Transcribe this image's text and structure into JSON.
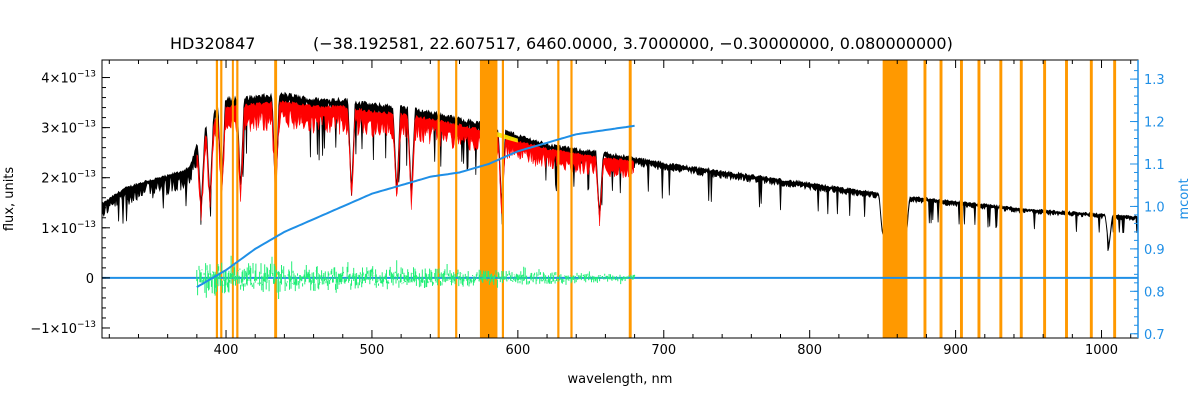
{
  "chart_data": {
    "type": "line",
    "title_object": "HD320847",
    "title_params": "(−38.192581, 22.607517, 6460.0000, 3.7000000, −0.30000000, 0.080000000)",
    "xlabel": "wavelength, nm",
    "ylabel": "flux, units",
    "y2label": "mcont",
    "xlim": [
      315,
      1025
    ],
    "ylim": [
      -1.2e-13,
      4.35e-13
    ],
    "y2lim": [
      0.69,
      1.345
    ],
    "grid": false,
    "x_ticks": [
      {
        "value": 400,
        "label": "400"
      },
      {
        "value": 500,
        "label": "500"
      },
      {
        "value": 600,
        "label": "600"
      },
      {
        "value": 700,
        "label": "700"
      },
      {
        "value": 800,
        "label": "800"
      },
      {
        "value": 900,
        "label": "900"
      },
      {
        "value": 1000,
        "label": "1000"
      }
    ],
    "y_ticks": [
      {
        "value": 4e-13,
        "mantissa": "4×10",
        "exp": "−13"
      },
      {
        "value": 3e-13,
        "mantissa": "3×10",
        "exp": "−13"
      },
      {
        "value": 2e-13,
        "mantissa": "2×10",
        "exp": "−13"
      },
      {
        "value": 1e-13,
        "mantissa": "1×10",
        "exp": "−13"
      },
      {
        "value": 0,
        "mantissa": "0",
        "exp": ""
      },
      {
        "value": -1e-13,
        "mantissa": "−1×10",
        "exp": "−13"
      }
    ],
    "y2_ticks": [
      "0.7",
      "0.8",
      "0.9",
      "1.0",
      "1.1",
      "1.2",
      "1.3"
    ],
    "colors": {
      "observed": "#000000",
      "model": "#ff0000",
      "model_highlight": "#ffee00",
      "residual": "#22ee77",
      "mcont": "#1f8fe6",
      "masked": "#ff9900",
      "right_axis": "#1f8fe6"
    },
    "series": [
      {
        "role": "observed",
        "color": "#000000",
        "points": [
          [
            315,
            1.45e-13
          ],
          [
            330,
            1.75e-13
          ],
          [
            345,
            1.9e-13
          ],
          [
            360,
            2e-13
          ],
          [
            375,
            2.15e-13
          ],
          [
            380,
            2.6e-13
          ],
          [
            390,
            3.2e-13
          ],
          [
            400,
            3.5e-13
          ],
          [
            420,
            3.55e-13
          ],
          [
            440,
            3.6e-13
          ],
          [
            460,
            3.5e-13
          ],
          [
            480,
            3.5e-13
          ],
          [
            500,
            3.4e-13
          ],
          [
            520,
            3.35e-13
          ],
          [
            540,
            3.25e-13
          ],
          [
            560,
            3.12e-13
          ],
          [
            580,
            3e-13
          ],
          [
            600,
            2.8e-13
          ],
          [
            620,
            2.62e-13
          ],
          [
            640,
            2.52e-13
          ],
          [
            660,
            2.45e-13
          ],
          [
            680,
            2.35e-13
          ],
          [
            700,
            2.25e-13
          ],
          [
            750,
            2.05e-13
          ],
          [
            800,
            1.85e-13
          ],
          [
            850,
            1.65e-13
          ],
          [
            900,
            1.5e-13
          ],
          [
            950,
            1.35e-13
          ],
          [
            1000,
            1.25e-13
          ],
          [
            1025,
            1.2e-13
          ]
        ]
      },
      {
        "role": "model",
        "color": "#ff0000",
        "x_range": [
          380,
          680
        ],
        "points": [
          [
            380,
            2.5e-13
          ],
          [
            390,
            3.1e-13
          ],
          [
            400,
            3.45e-13
          ],
          [
            420,
            3.5e-13
          ],
          [
            440,
            3.55e-13
          ],
          [
            460,
            3.45e-13
          ],
          [
            480,
            3.45e-13
          ],
          [
            500,
            3.35e-13
          ],
          [
            520,
            3.3e-13
          ],
          [
            540,
            3.2e-13
          ],
          [
            560,
            3.08e-13
          ],
          [
            580,
            2.95e-13
          ],
          [
            600,
            2.75e-13
          ],
          [
            620,
            2.6e-13
          ],
          [
            640,
            2.5e-13
          ],
          [
            660,
            2.42e-13
          ],
          [
            680,
            2.35e-13
          ]
        ]
      },
      {
        "role": "mcont",
        "axis": "right",
        "color": "#1f8fe6",
        "points": [
          [
            380,
            0.81
          ],
          [
            400,
            0.85
          ],
          [
            420,
            0.9
          ],
          [
            440,
            0.94
          ],
          [
            460,
            0.97
          ],
          [
            480,
            1.0
          ],
          [
            500,
            1.03
          ],
          [
            520,
            1.05
          ],
          [
            540,
            1.07
          ],
          [
            560,
            1.08
          ],
          [
            580,
            1.1
          ],
          [
            600,
            1.13
          ],
          [
            620,
            1.15
          ],
          [
            640,
            1.17
          ],
          [
            660,
            1.18
          ],
          [
            680,
            1.19
          ]
        ]
      },
      {
        "role": "residual",
        "color": "#22ee77",
        "x_range": [
          380,
          680
        ],
        "amplitude_start": 3.5e-14,
        "amplitude_end": 7e-15
      },
      {
        "role": "zero_line",
        "color": "#1f8fe6",
        "value": 0
      }
    ],
    "masked_regions": [
      [
        393,
        394.5
      ],
      [
        396,
        397.5
      ],
      [
        404,
        405
      ],
      [
        407,
        408.5
      ],
      [
        433,
        435
      ],
      [
        545,
        546.5
      ],
      [
        557,
        558.5
      ],
      [
        574,
        586
      ],
      [
        589,
        590.5
      ],
      [
        627,
        628.5
      ],
      [
        636,
        637.5
      ],
      [
        676,
        678
      ],
      [
        850,
        867
      ],
      [
        878,
        880
      ],
      [
        889,
        891
      ],
      [
        903,
        905
      ],
      [
        915,
        917
      ],
      [
        930,
        932
      ],
      [
        944,
        946
      ],
      [
        960,
        962
      ],
      [
        975,
        977
      ],
      [
        992,
        994
      ],
      [
        1008,
        1010
      ]
    ]
  }
}
